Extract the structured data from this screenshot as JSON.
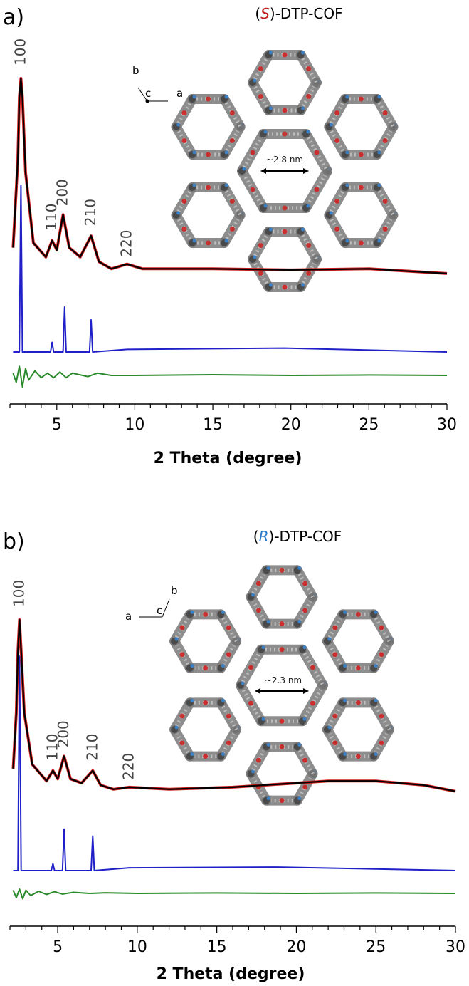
{
  "chart_data": [
    {
      "type": "line",
      "panel_label": "a)",
      "structure_title": {
        "prefix": "(",
        "chirality": "S",
        "suffix": ")-DTP-COF"
      },
      "xlabel": "2 Theta (degree)",
      "ylabel": "",
      "xlim": [
        2,
        30
      ],
      "x_ticks": [
        5,
        10,
        15,
        20,
        25,
        30
      ],
      "grid": false,
      "peaks": [
        {
          "label": "100",
          "x": 2.7
        },
        {
          "label": "110",
          "x": 4.7
        },
        {
          "label": "200",
          "x": 5.4
        },
        {
          "label": "210",
          "x": 7.2
        },
        {
          "label": "220",
          "x": 9.5
        }
      ],
      "series": [
        {
          "role": "experimental",
          "color": "#d02020",
          "x": [
            2.2,
            2.5,
            2.6,
            2.7,
            2.8,
            3.0,
            3.5,
            4.3,
            4.7,
            5.0,
            5.4,
            5.8,
            6.5,
            7.2,
            7.7,
            8.5,
            9.5,
            10.5,
            15,
            20,
            25,
            30
          ],
          "y": [
            28,
            65,
            92,
            100,
            92,
            60,
            30,
            24,
            31,
            27,
            42,
            28,
            24,
            33,
            22,
            19,
            21,
            19,
            19,
            18.5,
            19,
            17
          ]
        },
        {
          "role": "fit",
          "color": "#000000",
          "x": [
            2.2,
            2.5,
            2.6,
            2.7,
            2.8,
            3.0,
            3.5,
            4.3,
            4.7,
            5.0,
            5.4,
            5.8,
            6.5,
            7.2,
            7.7,
            8.5,
            9.5,
            10.5,
            15,
            20,
            25,
            30
          ],
          "y": [
            28,
            65,
            92,
            100,
            92,
            60,
            30,
            24,
            31,
            27,
            42,
            28,
            24,
            33,
            22,
            19,
            21,
            19,
            19,
            18.5,
            19,
            17
          ]
        },
        {
          "role": "simulated",
          "color": "#2020c8",
          "x": [
            2.2,
            2.6,
            2.7,
            2.8,
            3.0,
            4.6,
            4.7,
            4.8,
            5.4,
            5.5,
            5.6,
            7.1,
            7.2,
            7.3,
            9.5,
            19.6,
            30
          ],
          "y": [
            0,
            0,
            26,
            0,
            0,
            0,
            1.5,
            0,
            0,
            7,
            0,
            0,
            5,
            0,
            0.4,
            0.6,
            0
          ]
        },
        {
          "role": "difference",
          "color": "#2a8a2a",
          "x": [
            2.2,
            2.4,
            2.6,
            2.8,
            3.0,
            3.2,
            3.6,
            4.0,
            4.4,
            4.8,
            5.2,
            5.6,
            6.0,
            7.0,
            7.6,
            8.5,
            10,
            15,
            20,
            25,
            30
          ],
          "y": [
            1,
            -3,
            4,
            -5,
            3,
            -2,
            2,
            -1,
            1,
            -1,
            1.5,
            -1,
            1,
            -0.5,
            1,
            0,
            0,
            0.3,
            0,
            0.2,
            0
          ]
        }
      ],
      "annotation": {
        "pore_size": "~2.8 nm",
        "axes": [
          "b",
          "c",
          "a"
        ]
      }
    },
    {
      "type": "line",
      "panel_label": "b)",
      "structure_title": {
        "prefix": "(",
        "chirality": "R",
        "suffix": ")-DTP-COF"
      },
      "xlabel": "2 Theta (degree)",
      "ylabel": "",
      "xlim": [
        2,
        30
      ],
      "x_ticks": [
        5,
        10,
        15,
        20,
        25,
        30
      ],
      "grid": false,
      "peaks": [
        {
          "label": "100",
          "x": 2.6
        },
        {
          "label": "110",
          "x": 4.7
        },
        {
          "label": "200",
          "x": 5.4
        },
        {
          "label": "210",
          "x": 7.2
        },
        {
          "label": "220",
          "x": 9.5
        }
      ],
      "series": [
        {
          "role": "experimental",
          "color": "#d02020",
          "x": [
            2.2,
            2.4,
            2.5,
            2.6,
            2.7,
            2.9,
            3.4,
            4.3,
            4.7,
            5.0,
            5.4,
            5.8,
            6.5,
            7.2,
            7.7,
            8.5,
            9.5,
            12,
            16,
            20,
            22,
            25,
            28,
            30
          ],
          "y": [
            28,
            55,
            85,
            100,
            85,
            55,
            30,
            22,
            27,
            23,
            34,
            23,
            21,
            27,
            20,
            18,
            19,
            18,
            19,
            21,
            22,
            22,
            20,
            17
          ]
        },
        {
          "role": "fit",
          "color": "#000000",
          "x": [
            2.2,
            2.4,
            2.5,
            2.6,
            2.7,
            2.9,
            3.4,
            4.3,
            4.7,
            5.0,
            5.4,
            5.8,
            6.5,
            7.2,
            7.7,
            8.5,
            9.5,
            12,
            16,
            20,
            22,
            25,
            28,
            30
          ],
          "y": [
            28,
            55,
            85,
            100,
            85,
            55,
            30,
            22,
            27,
            23,
            34,
            23,
            21,
            27,
            20,
            18,
            19,
            18,
            19,
            21,
            22,
            22,
            20,
            17
          ]
        },
        {
          "role": "simulated",
          "color": "#2020c8",
          "x": [
            2.2,
            2.5,
            2.6,
            2.7,
            2.9,
            4.6,
            4.7,
            4.8,
            5.3,
            5.4,
            5.5,
            7.1,
            7.2,
            7.3,
            9.5,
            18.8,
            30
          ],
          "y": [
            0,
            0,
            31,
            0,
            0,
            0,
            1,
            0,
            0,
            6,
            0,
            0,
            5,
            0,
            0.4,
            0.5,
            0
          ]
        },
        {
          "role": "difference",
          "color": "#2a8a2a",
          "x": [
            2.2,
            2.4,
            2.6,
            2.8,
            3.0,
            3.3,
            3.8,
            4.3,
            4.8,
            5.3,
            6,
            7,
            8,
            10,
            15,
            20,
            25,
            30
          ],
          "y": [
            1.5,
            -2,
            2,
            -2.5,
            1.5,
            -1,
            1,
            -0.5,
            0.8,
            -0.3,
            0.5,
            0,
            0.3,
            0,
            0.2,
            0,
            0.2,
            0
          ]
        }
      ],
      "annotation": {
        "pore_size": "~2.3 nm",
        "axes": [
          "b",
          "a",
          "c"
        ]
      }
    }
  ]
}
